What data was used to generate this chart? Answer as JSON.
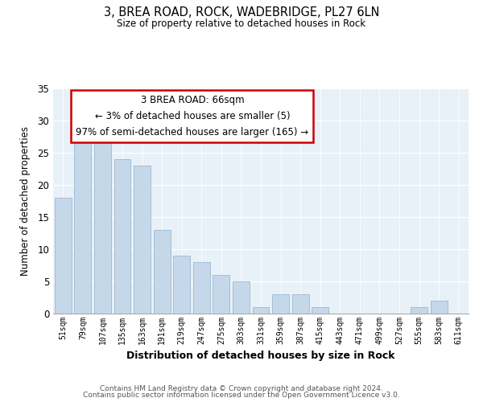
{
  "title": "3, BREA ROAD, ROCK, WADEBRIDGE, PL27 6LN",
  "subtitle": "Size of property relative to detached houses in Rock",
  "xlabel": "Distribution of detached houses by size in Rock",
  "ylabel": "Number of detached properties",
  "bar_color": "#c5d8ea",
  "bar_edge_color": "#9ab8d0",
  "plot_bg_color": "#e8f0f8",
  "annotation_line1": "3 BREA ROAD: 66sqm",
  "annotation_line2": "← 3% of detached houses are smaller (5)",
  "annotation_line3": "97% of semi-detached houses are larger (165) →",
  "categories": [
    "51sqm",
    "79sqm",
    "107sqm",
    "135sqm",
    "163sqm",
    "191sqm",
    "219sqm",
    "247sqm",
    "275sqm",
    "303sqm",
    "331sqm",
    "359sqm",
    "387sqm",
    "415sqm",
    "443sqm",
    "471sqm",
    "499sqm",
    "527sqm",
    "555sqm",
    "583sqm",
    "611sqm"
  ],
  "values": [
    18,
    27,
    27,
    24,
    23,
    13,
    9,
    8,
    6,
    5,
    1,
    3,
    3,
    1,
    0,
    0,
    0,
    0,
    1,
    2,
    0
  ],
  "ylim": [
    0,
    35
  ],
  "yticks": [
    0,
    5,
    10,
    15,
    20,
    25,
    30,
    35
  ],
  "footer_line1": "Contains HM Land Registry data © Crown copyright and database right 2024.",
  "footer_line2": "Contains public sector information licensed under the Open Government Licence v3.0."
}
